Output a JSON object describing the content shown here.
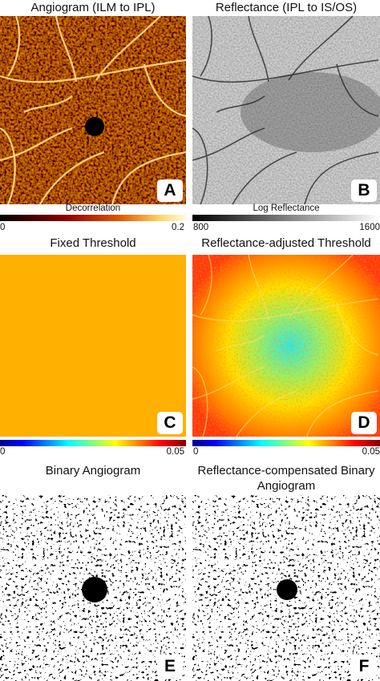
{
  "panels": [
    {
      "title": "Angiogram (ILM to IPL)",
      "letter": "A",
      "colorbar": {
        "label": "Decorrelation",
        "ticks": [
          "0",
          "0.2"
        ]
      }
    },
    {
      "title": "Reflectance (IPL to IS/OS)",
      "letter": "B",
      "colorbar": {
        "label": "Log Reflectance",
        "ticks": [
          "800",
          "1600"
        ]
      }
    },
    {
      "title": "Fixed Threshold",
      "letter": "C",
      "colorbar": {
        "ticks": [
          "0",
          "0.05"
        ]
      }
    },
    {
      "title": "Reflectance-adjusted Threshold",
      "letter": "D",
      "colorbar": {
        "ticks": [
          "0",
          "0.05"
        ]
      }
    },
    {
      "title": "Binary Angiogram",
      "letter": "E"
    },
    {
      "title": "Reflectance-compensated Binary Angiogram",
      "letter": "F"
    }
  ]
}
